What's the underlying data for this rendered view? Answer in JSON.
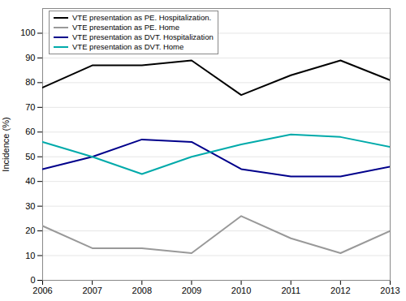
{
  "chart_data": {
    "type": "line",
    "ylabel": "Incidence (%)",
    "x": [
      2006,
      2007,
      2008,
      2009,
      2010,
      2011,
      2012,
      2013
    ],
    "series": [
      {
        "name": "VTE presentation as PE. Hospitalization.",
        "color": "#000000",
        "values": [
          78,
          87,
          87,
          89,
          75,
          83,
          89,
          81
        ]
      },
      {
        "name": "VTE presentation as PE. Home",
        "color": "#999999",
        "values": [
          22,
          13,
          13,
          11,
          26,
          17,
          11,
          20
        ]
      },
      {
        "name": "VTE presentation as DVT. Hospitalization",
        "color": "#00008B",
        "values": [
          45,
          50,
          57,
          56,
          45,
          42,
          42,
          46
        ]
      },
      {
        "name": "VTE presentation as DVT. Home",
        "color": "#00AAAA",
        "values": [
          56,
          50,
          43,
          50,
          55,
          59,
          58,
          54
        ]
      }
    ],
    "xlim": [
      2006,
      2013
    ],
    "xticks": [
      2006,
      2007,
      2008,
      2009,
      2010,
      2011,
      2012,
      2013
    ],
    "ylim": [
      0,
      110
    ],
    "yticks": [
      0,
      10,
      20,
      30,
      40,
      50,
      60,
      70,
      80,
      90,
      100
    ],
    "grid": true,
    "legend": "upper left"
  }
}
